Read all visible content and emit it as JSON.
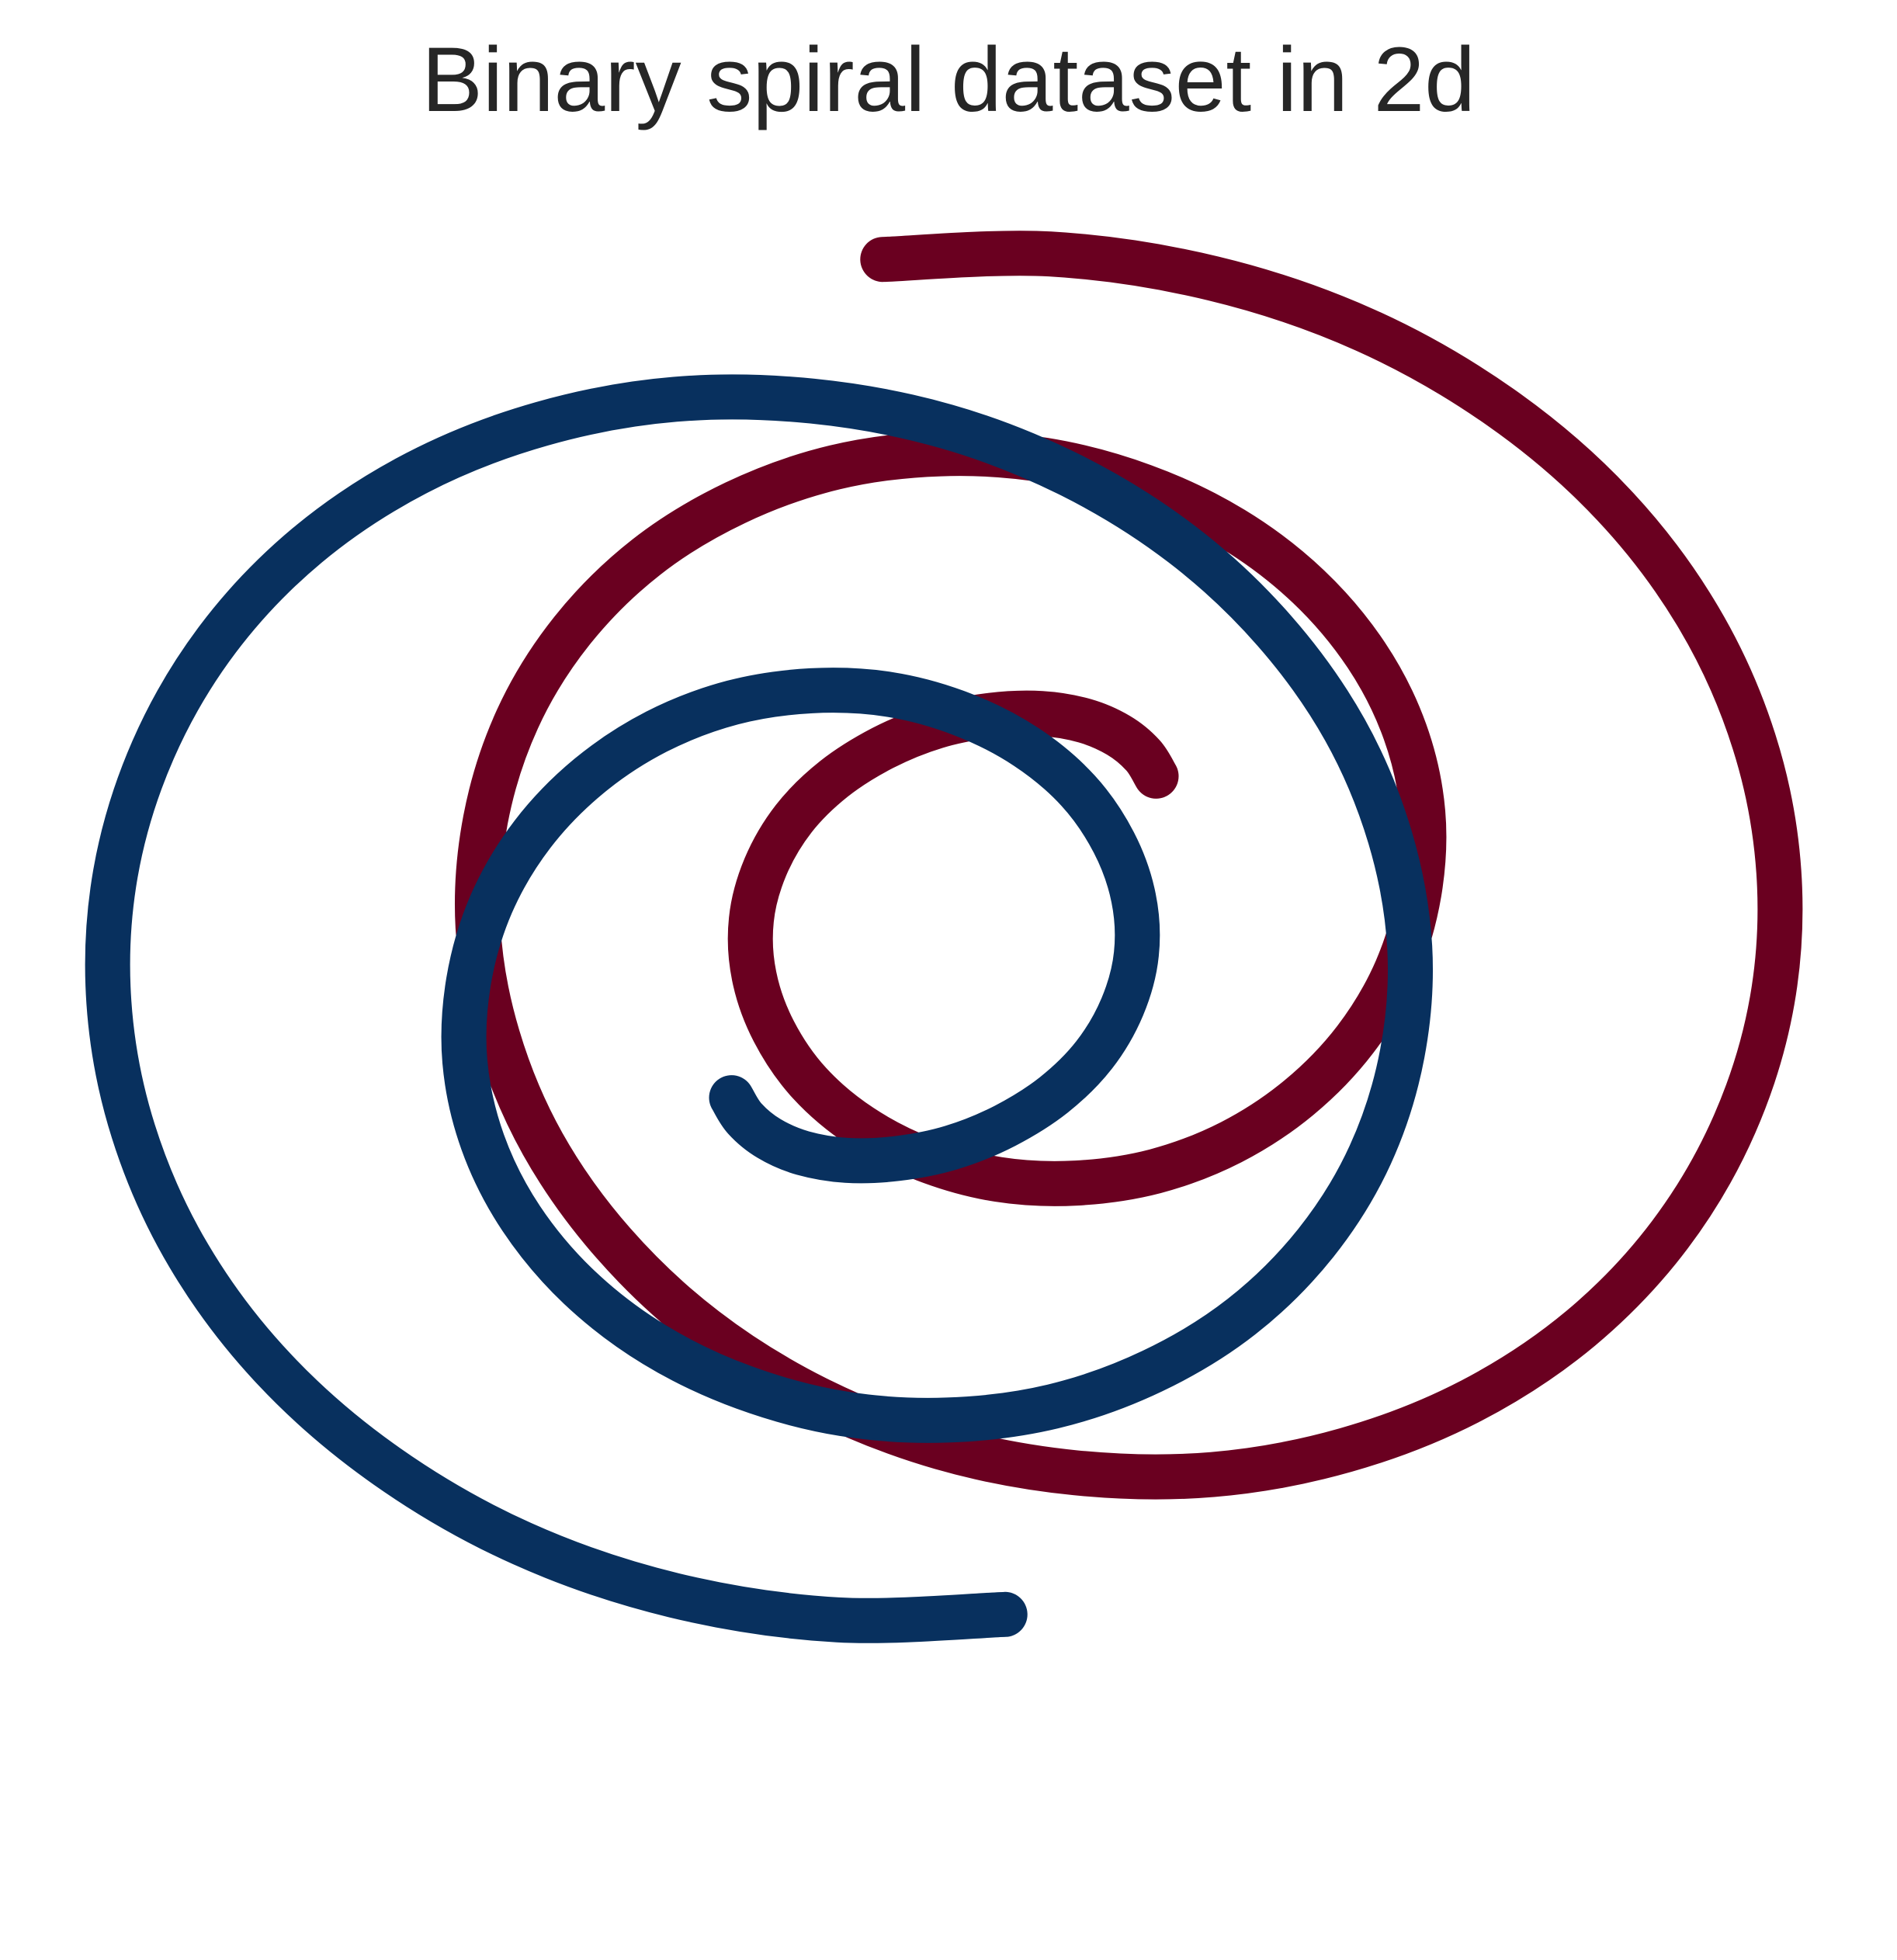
{
  "chart_data": {
    "type": "line",
    "title": "Binary spiral dataset in 2d",
    "xlabel": "",
    "ylabel": "",
    "xlim": [
      -1.1,
      1.1
    ],
    "ylim": [
      -1.1,
      1.1
    ],
    "grid": false,
    "axes_visible": false,
    "legend": "none",
    "series": [
      {
        "color": "#6a0020",
        "points": [
          [
            0.226,
            0.177
          ],
          [
            0.212,
            0.2
          ],
          [
            0.186,
            0.222
          ],
          [
            0.15,
            0.238
          ],
          [
            0.104,
            0.246
          ],
          [
            0.05,
            0.244
          ],
          [
            -0.008,
            0.232
          ],
          [
            -0.065,
            0.208
          ],
          [
            -0.117,
            0.174
          ],
          [
            -0.16,
            0.13
          ],
          [
            -0.19,
            0.077
          ],
          [
            -0.205,
            0.019
          ],
          [
            -0.202,
            -0.043
          ],
          [
            -0.181,
            -0.104
          ],
          [
            -0.143,
            -0.161
          ],
          [
            -0.088,
            -0.209
          ],
          [
            -0.02,
            -0.245
          ],
          [
            0.058,
            -0.267
          ],
          [
            0.141,
            -0.271
          ],
          [
            0.225,
            -0.258
          ],
          [
            0.306,
            -0.226
          ],
          [
            0.378,
            -0.177
          ],
          [
            0.438,
            -0.113
          ],
          [
            0.482,
            -0.036
          ],
          [
            0.506,
            0.049
          ],
          [
            0.51,
            0.137
          ],
          [
            0.491,
            0.226
          ],
          [
            0.45,
            0.31
          ],
          [
            0.388,
            0.386
          ],
          [
            0.308,
            0.449
          ],
          [
            0.213,
            0.496
          ],
          [
            0.107,
            0.525
          ],
          [
            -0.004,
            0.532
          ],
          [
            -0.116,
            0.517
          ],
          [
            -0.222,
            0.478
          ],
          [
            -0.317,
            0.418
          ],
          [
            -0.396,
            0.337
          ],
          [
            -0.454,
            0.24
          ],
          [
            -0.488,
            0.129
          ],
          [
            -0.496,
            0.011
          ],
          [
            -0.475,
            -0.11
          ],
          [
            -0.427,
            -0.228
          ],
          [
            -0.352,
            -0.337
          ],
          [
            -0.254,
            -0.432
          ],
          [
            -0.136,
            -0.508
          ],
          [
            -0.003,
            -0.562
          ],
          [
            0.14,
            -0.59
          ],
          [
            0.286,
            -0.592
          ],
          [
            0.428,
            -0.565
          ],
          [
            0.561,
            -0.511
          ],
          [
            0.678,
            -0.431
          ],
          [
            0.773,
            -0.328
          ],
          [
            0.842,
            -0.206
          ],
          [
            0.882,
            -0.07
          ],
          [
            0.889,
            0.072
          ],
          [
            0.863,
            0.214
          ],
          [
            0.804,
            0.351
          ],
          [
            0.713,
            0.476
          ],
          [
            0.593,
            0.583
          ],
          [
            0.449,
            0.668
          ],
          [
            0.287,
            0.725
          ],
          [
            0.113,
            0.752
          ],
          [
            -0.065,
            0.746
          ]
        ]
      },
      {
        "color": "#08305e",
        "points": [
          [
            -0.226,
            -0.177
          ],
          [
            -0.212,
            -0.2
          ],
          [
            -0.186,
            -0.222
          ],
          [
            -0.15,
            -0.238
          ],
          [
            -0.104,
            -0.246
          ],
          [
            -0.05,
            -0.244
          ],
          [
            0.008,
            -0.232
          ],
          [
            0.065,
            -0.208
          ],
          [
            0.117,
            -0.174
          ],
          [
            0.16,
            -0.13
          ],
          [
            0.19,
            -0.077
          ],
          [
            0.205,
            -0.019
          ],
          [
            0.202,
            0.043
          ],
          [
            0.181,
            0.104
          ],
          [
            0.143,
            0.161
          ],
          [
            0.088,
            0.209
          ],
          [
            0.02,
            0.245
          ],
          [
            -0.058,
            0.267
          ],
          [
            -0.141,
            0.271
          ],
          [
            -0.225,
            0.258
          ],
          [
            -0.306,
            0.226
          ],
          [
            -0.378,
            0.177
          ],
          [
            -0.438,
            0.113
          ],
          [
            -0.482,
            0.036
          ],
          [
            -0.506,
            -0.049
          ],
          [
            -0.51,
            -0.137
          ],
          [
            -0.491,
            -0.226
          ],
          [
            -0.45,
            -0.31
          ],
          [
            -0.388,
            -0.386
          ],
          [
            -0.308,
            -0.449
          ],
          [
            -0.213,
            -0.496
          ],
          [
            -0.107,
            -0.525
          ],
          [
            0.004,
            -0.532
          ],
          [
            0.116,
            -0.517
          ],
          [
            0.222,
            -0.478
          ],
          [
            0.317,
            -0.418
          ],
          [
            0.396,
            -0.337
          ],
          [
            0.454,
            -0.24
          ],
          [
            0.488,
            -0.129
          ],
          [
            0.496,
            -0.011
          ],
          [
            0.475,
            0.11
          ],
          [
            0.427,
            0.228
          ],
          [
            0.352,
            0.337
          ],
          [
            0.254,
            0.432
          ],
          [
            0.136,
            0.508
          ],
          [
            0.003,
            0.562
          ],
          [
            -0.14,
            0.59
          ],
          [
            -0.286,
            0.592
          ],
          [
            -0.428,
            0.565
          ],
          [
            -0.561,
            0.511
          ],
          [
            -0.678,
            0.431
          ],
          [
            -0.773,
            0.328
          ],
          [
            -0.842,
            0.206
          ],
          [
            -0.882,
            0.07
          ],
          [
            -0.889,
            -0.072
          ],
          [
            -0.863,
            -0.214
          ],
          [
            -0.804,
            -0.351
          ],
          [
            -0.713,
            -0.476
          ],
          [
            -0.593,
            -0.583
          ],
          [
            -0.449,
            -0.668
          ],
          [
            -0.287,
            -0.725
          ],
          [
            -0.113,
            -0.752
          ],
          [
            0.065,
            -0.746
          ]
        ]
      }
    ]
  }
}
